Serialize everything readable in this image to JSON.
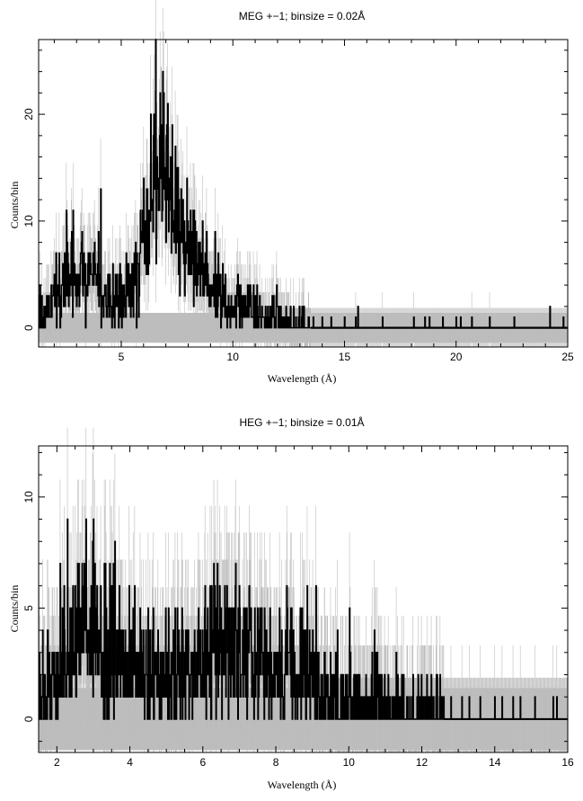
{
  "chart_data": [
    {
      "type": "line",
      "title": "MEG +−1; binsize = 0.02Å",
      "xlabel": "Wavelength (Å)",
      "ylabel": "Counts/bin",
      "xlim": [
        1.3,
        25
      ],
      "ylim": [
        -1.8,
        27
      ],
      "x_ticks": [
        5,
        10,
        15,
        20,
        25
      ],
      "x_tick_labels": [
        "5",
        "10",
        "15",
        "20",
        "25"
      ],
      "y_ticks": [
        0,
        10,
        20
      ],
      "y_tick_labels": [
        "0",
        "10",
        "20"
      ],
      "grid": false,
      "series": [
        {
          "style": "black histogram with grey error bars",
          "color": "#000000",
          "error_color": "#bdbdbd",
          "background_noise_band": [
            -1.4,
            1.4
          ],
          "x": [
            1.5,
            2.0,
            2.5,
            3.0,
            3.5,
            4.0,
            4.5,
            5.0,
            5.5,
            6.0,
            6.3,
            6.6,
            6.8,
            7.0,
            7.2,
            7.5,
            8.0,
            8.5,
            9.0,
            9.5,
            10.0,
            11.0,
            12.0,
            13.0,
            14.0,
            15.0,
            16.0,
            18.0,
            20.0,
            22.0,
            24.0,
            25.0
          ],
          "values": [
            1,
            2.5,
            4.5,
            5.5,
            5,
            4,
            3.5,
            3,
            3.5,
            9,
            12,
            15,
            18,
            14,
            12,
            10,
            7,
            5,
            3.5,
            2.5,
            2,
            1.5,
            1,
            0.5,
            0.4,
            0.3,
            0.2,
            0.1,
            0.1,
            0.1,
            0.2,
            0.1
          ],
          "peak_counts": [
            {
              "x": 6.0,
              "y": 14
            },
            {
              "x": 6.5,
              "y": 17
            },
            {
              "x": 6.8,
              "y": 19
            },
            {
              "x": 6.9,
              "y": 22
            },
            {
              "x": 7.2,
              "y": 16
            },
            {
              "x": 7.5,
              "y": 15
            }
          ],
          "isolated_counts": [
            {
              "x": 13.6,
              "y": 1
            },
            {
              "x": 14.0,
              "y": 1
            },
            {
              "x": 14.4,
              "y": 1
            },
            {
              "x": 15.0,
              "y": 1
            },
            {
              "x": 15.5,
              "y": 1
            },
            {
              "x": 15.6,
              "y": 2
            },
            {
              "x": 16.7,
              "y": 1
            },
            {
              "x": 18.1,
              "y": 1
            },
            {
              "x": 18.6,
              "y": 1
            },
            {
              "x": 18.8,
              "y": 1
            },
            {
              "x": 19.4,
              "y": 1
            },
            {
              "x": 20.0,
              "y": 1
            },
            {
              "x": 20.2,
              "y": 1
            },
            {
              "x": 20.7,
              "y": 1
            },
            {
              "x": 21.5,
              "y": 1
            },
            {
              "x": 22.6,
              "y": 1
            },
            {
              "x": 24.2,
              "y": 2
            },
            {
              "x": 24.8,
              "y": 1
            }
          ]
        }
      ]
    },
    {
      "type": "line",
      "title": "HEG +−1; binsize = 0.01Å",
      "xlabel": "Wavelength (Å)",
      "ylabel": "Counts/bin",
      "xlim": [
        1.5,
        16
      ],
      "ylim": [
        -1.5,
        12.3
      ],
      "x_ticks": [
        2,
        4,
        6,
        8,
        10,
        12,
        14,
        16
      ],
      "x_tick_labels": [
        "2",
        "4",
        "6",
        "8",
        "10",
        "12",
        "14",
        "16"
      ],
      "y_ticks": [
        0,
        5,
        10
      ],
      "y_tick_labels": [
        "0",
        "5",
        "10"
      ],
      "grid": false,
      "series": [
        {
          "style": "black histogram with grey error bars",
          "color": "#000000",
          "error_color": "#bdbdbd",
          "background_noise_band": [
            -1.4,
            1.4
          ],
          "x": [
            1.6,
            2.0,
            2.5,
            2.8,
            3.0,
            3.5,
            4.0,
            4.5,
            5.0,
            5.5,
            6.0,
            6.5,
            6.8,
            7.0,
            7.5,
            8.0,
            8.3,
            8.5,
            9.0,
            9.5,
            10.0,
            10.5,
            11.0,
            11.5,
            12.0,
            12.5,
            13.0,
            14.0,
            15.0,
            16.0
          ],
          "values": [
            1,
            2,
            3,
            4,
            4,
            3,
            2.5,
            2,
            2,
            2,
            2.5,
            3,
            3.5,
            3,
            2.5,
            2.5,
            2.5,
            2,
            1.5,
            1,
            1,
            0.8,
            0.6,
            0.5,
            0.4,
            0.3,
            0.2,
            0.2,
            0.2,
            0.1
          ],
          "peak_counts": [
            {
              "x": 2.8,
              "y": 9
            },
            {
              "x": 3.0,
              "y": 9
            },
            {
              "x": 2.6,
              "y": 7
            },
            {
              "x": 3.3,
              "y": 7
            },
            {
              "x": 2.2,
              "y": 6
            },
            {
              "x": 6.9,
              "y": 7
            },
            {
              "x": 6.2,
              "y": 6
            },
            {
              "x": 6.6,
              "y": 6
            },
            {
              "x": 8.3,
              "y": 6
            },
            {
              "x": 4.5,
              "y": 5
            },
            {
              "x": 5.3,
              "y": 5
            },
            {
              "x": 7.5,
              "y": 5
            }
          ],
          "isolated_counts": [
            {
              "x": 12.2,
              "y": 1
            },
            {
              "x": 12.4,
              "y": 2
            },
            {
              "x": 12.5,
              "y": 2
            },
            {
              "x": 12.8,
              "y": 1
            },
            {
              "x": 13.1,
              "y": 1
            },
            {
              "x": 13.3,
              "y": 1
            },
            {
              "x": 13.6,
              "y": 1
            },
            {
              "x": 14.0,
              "y": 1
            },
            {
              "x": 14.2,
              "y": 1
            },
            {
              "x": 14.5,
              "y": 1
            },
            {
              "x": 14.7,
              "y": 1
            },
            {
              "x": 15.1,
              "y": 1
            },
            {
              "x": 15.6,
              "y": 1
            },
            {
              "x": 15.7,
              "y": 1
            }
          ]
        }
      ]
    }
  ]
}
